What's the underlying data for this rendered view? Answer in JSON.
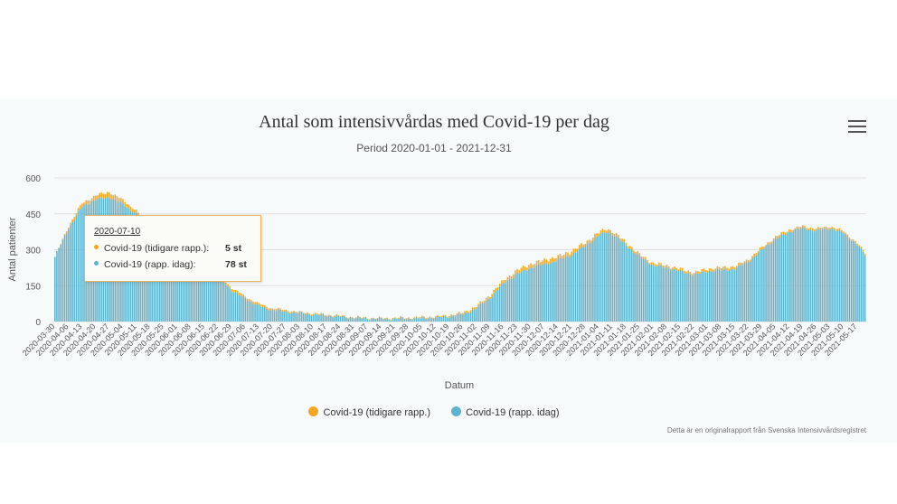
{
  "colors": {
    "earlier": "#f5a623",
    "today": "#5fb3cc",
    "grid": "#e0e0e0",
    "background": "#f7fafa"
  },
  "chart_data": {
    "type": "bar",
    "stacked": true,
    "title": "Antal som intensivvårdas med Covid-19 per dag",
    "subtitle": "Period 2020-01-01 - 2021-12-31",
    "xlabel": "Datum",
    "ylabel": "Antal patienter",
    "ylim": [
      0,
      600
    ],
    "yticks": [
      "0",
      "150",
      "300",
      "450",
      "600"
    ],
    "grid": true,
    "legend_position": "bottom-center",
    "x_start": "2020-03-30",
    "x_end": "2021-05-21",
    "xtick_labels": [
      "2020-03-30",
      "2020-04-06",
      "2020-04-13",
      "2020-04-20",
      "2020-04-27",
      "2020-05-04",
      "2020-05-11",
      "2020-05-18",
      "2020-05-25",
      "2020-06-01",
      "2020-06-08",
      "2020-06-15",
      "2020-06-22",
      "2020-06-29",
      "2020-07-06",
      "2020-07-13",
      "2020-07-20",
      "2020-07-27",
      "2020-08-03",
      "2020-08-10",
      "2020-08-17",
      "2020-08-24",
      "2020-08-31",
      "2020-09-07",
      "2020-09-14",
      "2020-09-21",
      "2020-09-28",
      "2020-10-05",
      "2020-10-12",
      "2020-10-19",
      "2020-10-26",
      "2020-11-02",
      "2020-11-09",
      "2020-11-16",
      "2020-11-23",
      "2020-11-30",
      "2020-12-07",
      "2020-12-14",
      "2020-12-21",
      "2020-12-28",
      "2021-01-04",
      "2021-01-11",
      "2021-01-18",
      "2021-01-25",
      "2021-02-01",
      "2021-02-08",
      "2021-02-15",
      "2021-02-22",
      "2021-03-01",
      "2021-03-08",
      "2021-03-15",
      "2021-03-22",
      "2021-03-29",
      "2021-04-05",
      "2021-04-12",
      "2021-04-19",
      "2021-04-26",
      "2021-05-03",
      "2021-05-10",
      "2021-05-17"
    ],
    "series": [
      {
        "name": "Covid-19 (tidigare rapp.)",
        "color": "#f5a623",
        "trend": [
          [
            "2020-03-30",
            0
          ],
          [
            "2020-04-10",
            15
          ],
          [
            "2020-04-20",
            20
          ],
          [
            "2020-04-27",
            25
          ],
          [
            "2020-05-04",
            20
          ],
          [
            "2020-05-18",
            10
          ],
          [
            "2020-06-29",
            12
          ],
          [
            "2020-07-13",
            10
          ],
          [
            "2020-08-03",
            5
          ],
          [
            "2020-09-07",
            3
          ],
          [
            "2020-10-19",
            5
          ],
          [
            "2020-11-16",
            15
          ],
          [
            "2020-12-07",
            20
          ],
          [
            "2021-01-04",
            15
          ],
          [
            "2021-02-01",
            10
          ],
          [
            "2021-03-08",
            12
          ],
          [
            "2021-04-12",
            10
          ],
          [
            "2021-05-21",
            8
          ]
        ]
      },
      {
        "name": "Covid-19 (rapp. idag)",
        "color": "#5fb3cc",
        "trend": [
          [
            "2020-03-30",
            270
          ],
          [
            "2020-04-06",
            390
          ],
          [
            "2020-04-13",
            480
          ],
          [
            "2020-04-20",
            510
          ],
          [
            "2020-04-27",
            520
          ],
          [
            "2020-05-04",
            490
          ],
          [
            "2020-05-11",
            450
          ],
          [
            "2020-05-18",
            380
          ],
          [
            "2020-05-25",
            320
          ],
          [
            "2020-06-01",
            280
          ],
          [
            "2020-06-08",
            260
          ],
          [
            "2020-06-15",
            240
          ],
          [
            "2020-06-22",
            190
          ],
          [
            "2020-06-29",
            130
          ],
          [
            "2020-07-06",
            95
          ],
          [
            "2020-07-13",
            65
          ],
          [
            "2020-07-20",
            48
          ],
          [
            "2020-08-03",
            35
          ],
          [
            "2020-08-17",
            25
          ],
          [
            "2020-09-01",
            15
          ],
          [
            "2020-09-14",
            11
          ],
          [
            "2020-10-01",
            13
          ],
          [
            "2020-10-15",
            18
          ],
          [
            "2020-10-26",
            30
          ],
          [
            "2020-11-02",
            55
          ],
          [
            "2020-11-09",
            100
          ],
          [
            "2020-11-16",
            160
          ],
          [
            "2020-11-23",
            200
          ],
          [
            "2020-11-30",
            225
          ],
          [
            "2020-12-07",
            240
          ],
          [
            "2020-12-14",
            255
          ],
          [
            "2020-12-21",
            280
          ],
          [
            "2020-12-28",
            315
          ],
          [
            "2021-01-04",
            360
          ],
          [
            "2021-01-08",
            375
          ],
          [
            "2021-01-11",
            365
          ],
          [
            "2021-01-18",
            320
          ],
          [
            "2021-01-25",
            270
          ],
          [
            "2021-02-01",
            235
          ],
          [
            "2021-02-08",
            225
          ],
          [
            "2021-02-15",
            210
          ],
          [
            "2021-02-22",
            195
          ],
          [
            "2021-03-01",
            210
          ],
          [
            "2021-03-08",
            215
          ],
          [
            "2021-03-15",
            220
          ],
          [
            "2021-03-22",
            250
          ],
          [
            "2021-03-29",
            300
          ],
          [
            "2021-04-05",
            345
          ],
          [
            "2021-04-12",
            375
          ],
          [
            "2021-04-19",
            390
          ],
          [
            "2021-04-26",
            380
          ],
          [
            "2021-05-03",
            390
          ],
          [
            "2021-05-10",
            370
          ],
          [
            "2021-05-17",
            320
          ],
          [
            "2021-05-21",
            280
          ]
        ]
      }
    ]
  },
  "tooltip": {
    "date": "2020-07-10",
    "rows": [
      {
        "label": "Covid-19 (tidigare rapp.):",
        "value": "5 st",
        "color": "#f5a623"
      },
      {
        "label": "Covid-19 (rapp. idag):",
        "value": "78 st",
        "color": "#5fb3cc"
      }
    ]
  },
  "legend": [
    {
      "label": "Covid-19 (tidigare rapp.)",
      "color": "#f5a623"
    },
    {
      "label": "Covid-19 (rapp. idag)",
      "color": "#5fb3cc"
    }
  ],
  "menu_icon": "hamburger-menu-icon",
  "credit": "Detta är en originalrapport från Svenska Intensivvårdsregistret"
}
